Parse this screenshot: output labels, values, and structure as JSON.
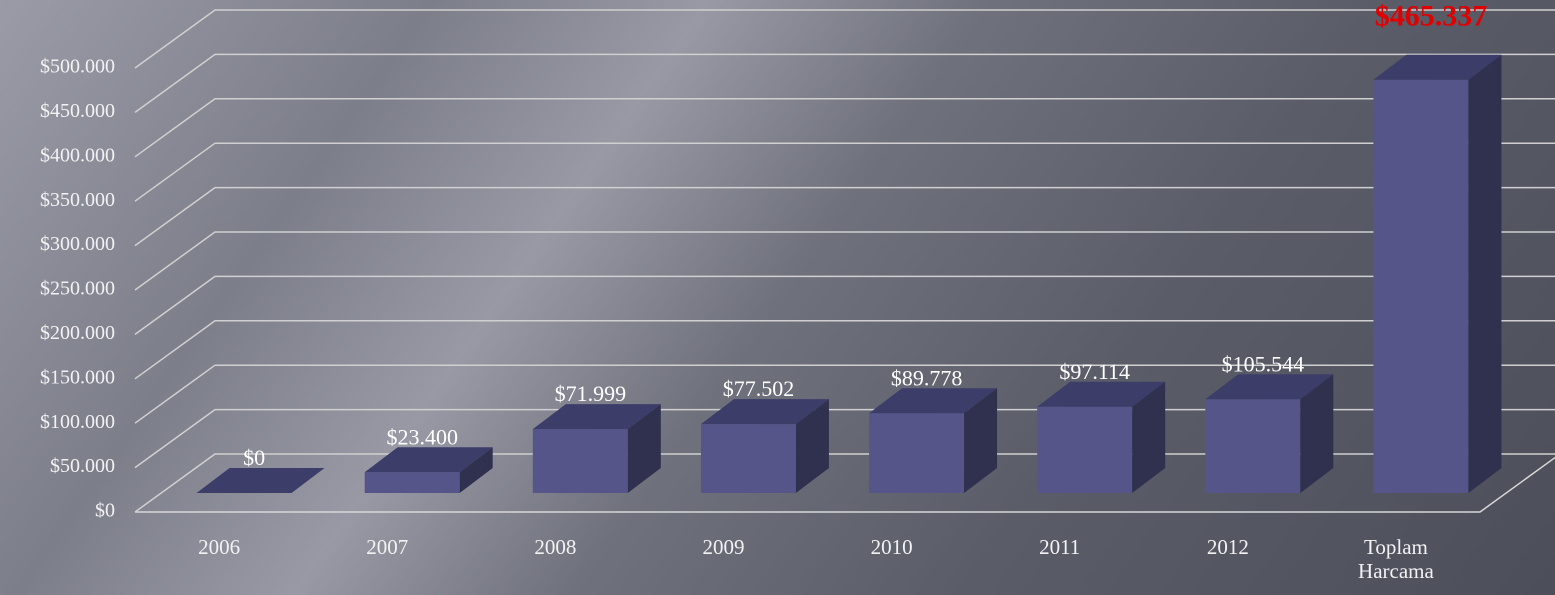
{
  "chart_data": {
    "type": "bar3d",
    "categories": [
      "2006",
      "2007",
      "2008",
      "2009",
      "2010",
      "2011",
      "2012",
      "Toplam Harcama"
    ],
    "values": [
      0,
      23400,
      71999,
      77502,
      89778,
      97114,
      105544,
      465337
    ],
    "value_labels": [
      "$0",
      "$23.400",
      "$71.999",
      "$77.502",
      "$89.778",
      "$97.114",
      "$105.544",
      "$465.337"
    ],
    "value_label_colors": [
      "#ffffff",
      "#ffffff",
      "#ffffff",
      "#ffffff",
      "#ffffff",
      "#ffffff",
      "#ffffff",
      "#e00000"
    ],
    "color": "#55558a",
    "ylim": [
      0,
      500000
    ],
    "yticks": [
      {
        "value": 0,
        "label": "$0"
      },
      {
        "value": 50000,
        "label": "$50.000"
      },
      {
        "value": 100000,
        "label": "$100.000"
      },
      {
        "value": 150000,
        "label": "$150.000"
      },
      {
        "value": 200000,
        "label": "$200.000"
      },
      {
        "value": 250000,
        "label": "$250.000"
      },
      {
        "value": 300000,
        "label": "$300.000"
      },
      {
        "value": 350000,
        "label": "$350.000"
      },
      {
        "value": 400000,
        "label": "$400.000"
      },
      {
        "value": 450000,
        "label": "$450.000"
      },
      {
        "value": 500000,
        "label": "$500.000"
      }
    ],
    "grid": true
  }
}
